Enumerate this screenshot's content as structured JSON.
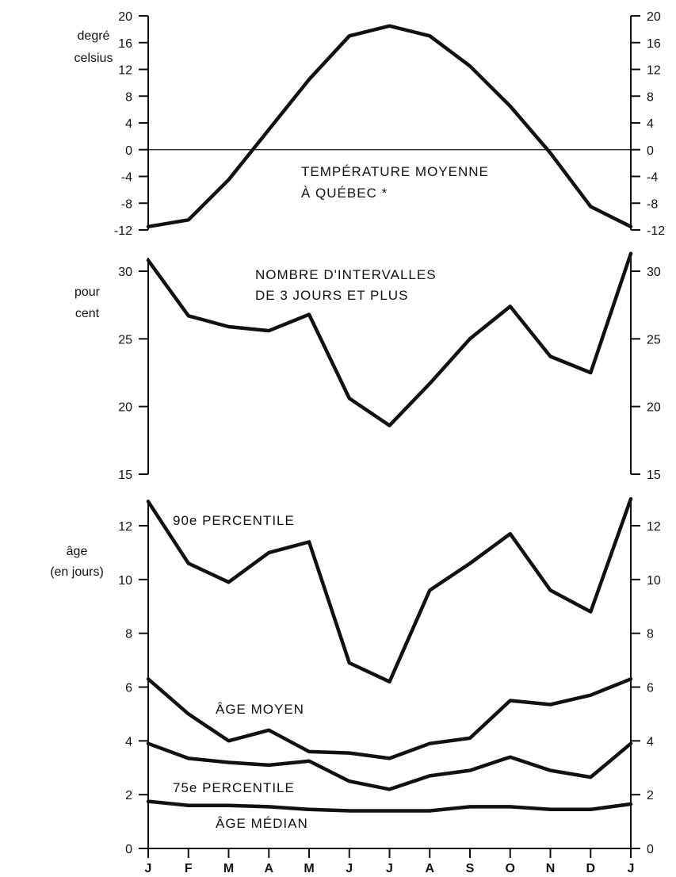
{
  "chart_data": [
    {
      "type": "line",
      "months": [
        "J",
        "F",
        "M",
        "A",
        "M",
        "J",
        "J",
        "A",
        "S",
        "O",
        "N",
        "D",
        "J"
      ],
      "ylabel": [
        "degré",
        "celsius"
      ],
      "ylim": [
        -12,
        20
      ],
      "yticks": [
        20,
        16,
        12,
        8,
        4,
        0,
        -4,
        -8,
        -12
      ],
      "annotations": [
        "TEMPÉRATURE MOYENNE",
        "À QUÉBEC *"
      ],
      "series": [
        {
          "values": [
            -11.5,
            -10.5,
            -4.5,
            3,
            10.5,
            17,
            18.5,
            17,
            12.5,
            6.5,
            -0.5,
            -8.5,
            -11.5
          ]
        }
      ]
    },
    {
      "type": "line",
      "months": [
        "J",
        "F",
        "M",
        "A",
        "M",
        "J",
        "J",
        "A",
        "S",
        "O",
        "N",
        "D",
        "J"
      ],
      "ylabel": [
        "pour",
        "cent"
      ],
      "ylim": [
        15,
        31
      ],
      "yticks": [
        30,
        25,
        20,
        15
      ],
      "annotations": [
        "NOMBRE D'INTERVALLES",
        "DE 3 JOURS ET PLUS"
      ],
      "series": [
        {
          "values": [
            30.8,
            26.7,
            25.9,
            25.6,
            26.8,
            20.6,
            18.6,
            21.7,
            25.0,
            27.4,
            23.7,
            22.5,
            31.3
          ]
        }
      ]
    },
    {
      "type": "line",
      "months": [
        "J",
        "F",
        "M",
        "A",
        "M",
        "J",
        "J",
        "A",
        "S",
        "O",
        "N",
        "D",
        "J"
      ],
      "ylabel": [
        "âge",
        "(en jours)"
      ],
      "ylim": [
        0,
        13
      ],
      "yticks": [
        0,
        2,
        4,
        6,
        8,
        10,
        12
      ],
      "series": [
        {
          "name": "90e PERCENTILE",
          "values": [
            12.9,
            10.6,
            9.9,
            11.0,
            11.4,
            6.9,
            6.2,
            9.6,
            10.6,
            11.7,
            9.6,
            8.8,
            13.0
          ]
        },
        {
          "name": "ÂGE MOYEN",
          "values": [
            6.3,
            5.0,
            4.0,
            4.4,
            3.6,
            3.55,
            3.35,
            3.9,
            4.1,
            5.5,
            5.35,
            5.7,
            6.3
          ]
        },
        {
          "name": "75e PERCENTILE",
          "values": [
            3.9,
            3.35,
            3.2,
            3.1,
            3.25,
            2.5,
            2.2,
            2.7,
            2.9,
            3.4,
            2.9,
            2.65,
            3.9
          ]
        },
        {
          "name": "ÂGE MÉDIAN",
          "values": [
            1.75,
            1.6,
            1.6,
            1.55,
            1.45,
            1.4,
            1.4,
            1.4,
            1.55,
            1.55,
            1.45,
            1.45,
            1.65
          ]
        }
      ]
    }
  ]
}
